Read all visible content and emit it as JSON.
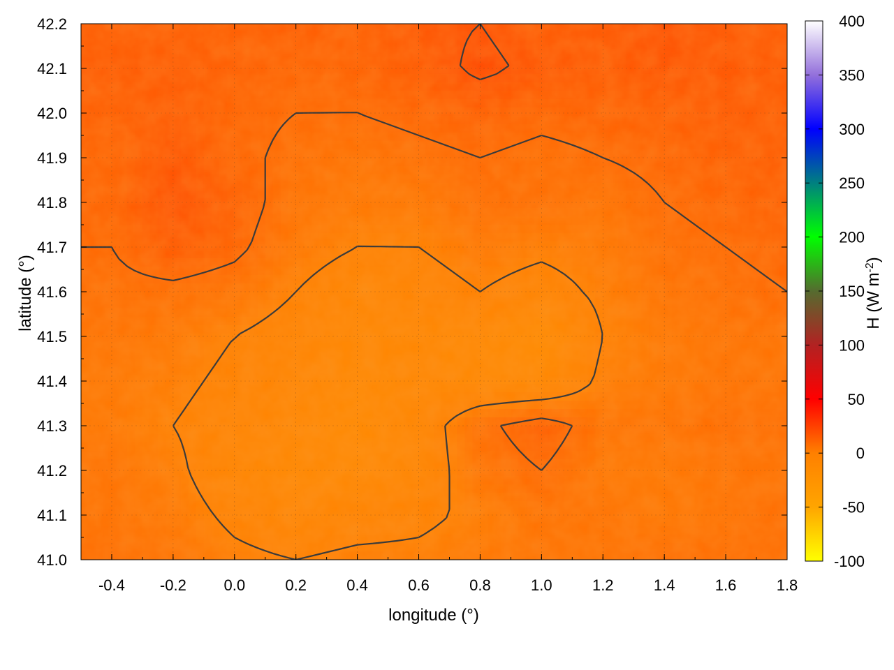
{
  "chart_data": {
    "type": "heatmap",
    "title": "",
    "xlabel": "longitude (°)",
    "ylabel": "latitude (°)",
    "xlim": [
      -0.5,
      1.8
    ],
    "ylim": [
      41.0,
      42.2
    ],
    "x_ticks": [
      "-0.4",
      "-0.2",
      "0.0",
      "0.2",
      "0.4",
      "0.6",
      "0.8",
      "1.0",
      "1.2",
      "1.4",
      "1.6",
      "1.8"
    ],
    "y_ticks": [
      "41.0",
      "41.1",
      "41.2",
      "41.3",
      "41.4",
      "41.5",
      "41.6",
      "41.7",
      "41.8",
      "41.9",
      "42.0",
      "42.1",
      "42.2"
    ],
    "grid": true,
    "colorbar": {
      "label": "H (W m-2)",
      "label_main": "H (W m",
      "label_sup": "-2",
      "label_tail": ")",
      "range": [
        -100,
        400
      ],
      "ticks": [
        "400",
        "350",
        "300",
        "250",
        "200",
        "150",
        "100",
        "50",
        "0",
        "-50",
        "-100"
      ],
      "colors": [
        {
          "value": -100,
          "color": "#ffff00"
        },
        {
          "value": -50,
          "color": "#ffa500"
        },
        {
          "value": 0,
          "color": "#ff8000"
        },
        {
          "value": 50,
          "color": "#ff0000"
        },
        {
          "value": 100,
          "color": "#b22222"
        },
        {
          "value": 150,
          "color": "#556b2f"
        },
        {
          "value": 200,
          "color": "#00ff00"
        },
        {
          "value": 250,
          "color": "#008080"
        },
        {
          "value": 300,
          "color": "#0000ff"
        },
        {
          "value": 350,
          "color": "#9370db"
        },
        {
          "value": 400,
          "color": "#ffffff"
        }
      ]
    },
    "field": {
      "description_of_values": "sensible heat flux mostly between about -20 and 30 W m-2",
      "min_approx": -25,
      "max_approx": 30,
      "columns": [
        "-0.4",
        "-0.2",
        "0.0",
        "0.2",
        "0.4",
        "0.6",
        "0.8",
        "1.0",
        "1.2",
        "1.4",
        "1.6",
        "1.8"
      ],
      "rows_lat": [
        "42.2",
        "42.1",
        "42.0",
        "41.9",
        "41.8",
        "41.7",
        "41.6",
        "41.5",
        "41.4",
        "41.3",
        "41.2",
        "41.1",
        "41.0"
      ],
      "values": [
        [
          15,
          15,
          14,
          15,
          14,
          18,
          20,
          16,
          17,
          20,
          17,
          16
        ],
        [
          16,
          16,
          14,
          12,
          13,
          16,
          22,
          18,
          16,
          18,
          17,
          16
        ],
        [
          14,
          16,
          12,
          10,
          10,
          12,
          14,
          12,
          13,
          14,
          16,
          15
        ],
        [
          12,
          18,
          12,
          8,
          6,
          8,
          10,
          8,
          10,
          12,
          14,
          15
        ],
        [
          12,
          20,
          14,
          6,
          4,
          4,
          8,
          8,
          6,
          10,
          12,
          14
        ],
        [
          10,
          16,
          12,
          4,
          0,
          0,
          4,
          2,
          4,
          8,
          10,
          12
        ],
        [
          8,
          8,
          6,
          0,
          -6,
          -4,
          0,
          -4,
          2,
          6,
          8,
          10
        ],
        [
          6,
          4,
          0,
          -4,
          -8,
          -8,
          -10,
          -14,
          0,
          4,
          6,
          6
        ],
        [
          4,
          2,
          -2,
          -6,
          -10,
          -8,
          -10,
          -10,
          2,
          4,
          6,
          6
        ],
        [
          4,
          0,
          -4,
          -8,
          -12,
          -6,
          8,
          14,
          6,
          6,
          8,
          8
        ],
        [
          6,
          2,
          -6,
          -10,
          -10,
          -6,
          6,
          10,
          4,
          4,
          6,
          6
        ],
        [
          6,
          4,
          -2,
          -6,
          -4,
          -2,
          2,
          6,
          6,
          4,
          6,
          8
        ],
        [
          8,
          6,
          2,
          0,
          2,
          2,
          4,
          6,
          6,
          8,
          8,
          8
        ]
      ]
    },
    "contour_levels": [
      0,
      10,
      20
    ]
  }
}
